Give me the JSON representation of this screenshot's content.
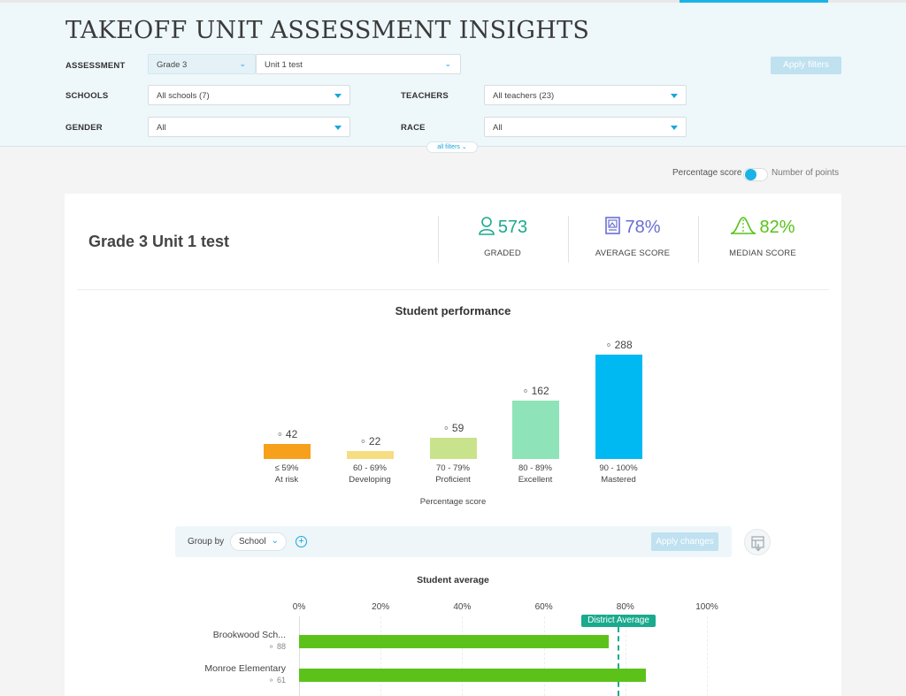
{
  "header": {
    "title": "TAKEOFF UNIT ASSESSMENT INSIGHTS",
    "filters": {
      "assessment_label": "ASSESSMENT",
      "grade_value": "Grade 3",
      "test_value": "Unit 1 test",
      "schools_label": "SCHOOLS",
      "schools_value": "All schools (7)",
      "teachers_label": "TEACHERS",
      "teachers_value": "All teachers (23)",
      "gender_label": "GENDER",
      "gender_value": "All",
      "race_label": "RACE",
      "race_value": "All",
      "apply_label": "Apply filters",
      "all_filters_label": "all filters"
    }
  },
  "toggle": {
    "left_label": "Percentage score",
    "right_label": "Number of points",
    "selected": "Percentage score"
  },
  "summary": {
    "title": "Grade 3 Unit 1 test",
    "stats": [
      {
        "value": "573",
        "label": "GRADED",
        "icon": "person-icon",
        "color": "#1aaa8e"
      },
      {
        "value": "78%",
        "label": "AVERAGE SCORE",
        "icon": "clipboard-icon",
        "color": "#6a6fd1"
      },
      {
        "value": "82%",
        "label": "MEDIAN SCORE",
        "icon": "bell-curve-icon",
        "color": "#58c21a"
      }
    ]
  },
  "performance": {
    "title": "Student performance",
    "xlabel": "Percentage score"
  },
  "group_by": {
    "label": "Group by",
    "value": "School",
    "apply_label": "Apply changes"
  },
  "average": {
    "title": "Student average",
    "district_label": "District Average"
  },
  "chart_data": [
    {
      "type": "bar",
      "title": "Student performance",
      "xlabel": "Percentage score",
      "ylabel": "",
      "categories": [
        "≤ 59%",
        "60 - 69%",
        "70 - 79%",
        "80 - 89%",
        "90 - 100%"
      ],
      "sublabels": [
        "At risk",
        "Developing",
        "Proficient",
        "Excellent",
        "Mastered"
      ],
      "values": [
        42,
        22,
        59,
        162,
        288
      ],
      "colors": [
        "#f7a01c",
        "#f7dd82",
        "#c9e38c",
        "#8ee3b8",
        "#00b9f2"
      ],
      "ylim": [
        0,
        288
      ],
      "grid": false
    },
    {
      "type": "bar",
      "orientation": "horizontal",
      "title": "Student average",
      "xlabel": "",
      "ylabel": "",
      "xticks": [
        "0%",
        "20%",
        "40%",
        "60%",
        "80%",
        "100%"
      ],
      "xlim": [
        0,
        100
      ],
      "reference_line": {
        "label": "District Average",
        "value": 78
      },
      "categories": [
        "Brookwood Sch...",
        "Monroe Elementary"
      ],
      "counts": [
        88,
        61
      ],
      "values": [
        76,
        85
      ],
      "color": "#5cc21a"
    }
  ]
}
